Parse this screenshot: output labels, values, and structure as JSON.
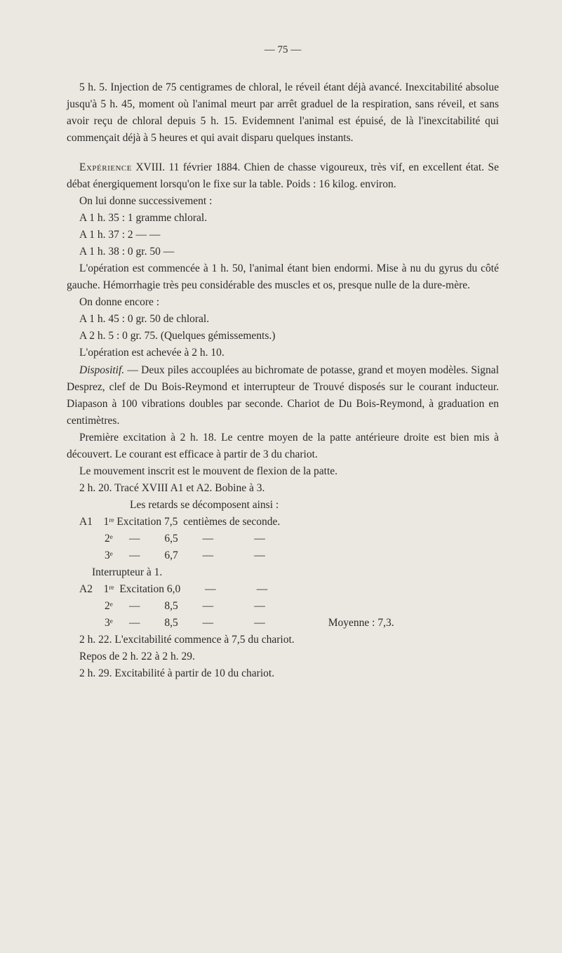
{
  "page_number": "— 75 —",
  "paragraphs": {
    "p1": "5 h. 5. Injection de 75 centigrames de chloral, le réveil étant déjà avancé. Inexcitabilité absolue jusqu'à 5 h. 45, moment où l'animal meurt par arrêt graduel de la respiration, sans réveil, et sans avoir reçu de chloral depuis 5 h. 15. Evidemnent l'animal est épuisé, de là l'inexcitabilité qui commençait déjà à 5 heures et qui avait disparu quelques instants.",
    "p2a": "Expérience",
    "p2b": " XVIII. 11 février 1884. Chien de chasse vigoureux, très vif, en excellent état. Se débat énergiquement lorsqu'on le fixe sur la table. Poids : 16 kilog. environ.",
    "p3": "On lui donne successivement :",
    "p4": "A 1 h. 35 : 1 gramme chloral.",
    "p5": "A 1 h. 37 : 2     —          —",
    "p6": "A 1 h. 38 : 0 gr. 50            —",
    "p7": "L'opération est commencée à 1 h. 50, l'animal étant bien endormi. Mise à nu du gyrus du côté gauche. Hémorrhagie très peu considérable des muscles et os, presque nulle de la dure-mère.",
    "p8": "On donne encore :",
    "p9": "A 1 h. 45 : 0 gr. 50 de chloral.",
    "p10": "A 2 h. 5 : 0 gr. 75. (Quelques gémissements.)",
    "p11": "L'opération est achevée à 2 h. 10.",
    "p12a": "Dispositif.",
    "p12b": " — Deux piles accouplées au bichromate de potasse, grand et moyen modèles. Signal Desprez, clef de Du Bois-Reymond et interrupteur de Trouvé disposés sur le courant inducteur. Diapason à 100 vibrations doubles par seconde. Chariot de Du Bois-Reymond, à graduation en centimètres.",
    "p13": "Première excitation à 2 h. 18. Le centre moyen de la patte antérieure droite est bien mis à découvert. Le courant est efficace à partir de 3 du chariot.",
    "p14": "Le mouvement inscrit est le mouvent de flexion de la patte.",
    "p15": "2 h. 20. Tracé XVIII A1 et A2. Bobine à 3.",
    "p16": "Les retards se décomposent ainsi :",
    "p17": "A1    1ʳᵉ Excitation 7,5  centièmes de seconde.",
    "p18": "2ᵉ      —         6,5         —               —",
    "p19": "3ᵉ      —         6,7         —               —",
    "p20": "Interrupteur à 1.",
    "p21": "A2    1ʳᵉ  Excitation 6,0         —               —",
    "p22": "2ᵉ      —         8,5         —               —",
    "p23a": "3ᵉ      —         8,5         —               —",
    "p23b": "Moyenne : 7,3.",
    "p24": "2 h. 22. L'excitabilité commence à 7,5 du chariot.",
    "p25": "Repos de 2 h. 22 à 2 h. 29.",
    "p26": "2 h. 29. Excitabilité à partir de 10 du chariot."
  },
  "colors": {
    "background": "#ebe8e1",
    "text": "#2a2a2a"
  },
  "typography": {
    "body_fontsize": 15.5,
    "body_lineheight": 1.55,
    "font_family": "Georgia, serif"
  }
}
